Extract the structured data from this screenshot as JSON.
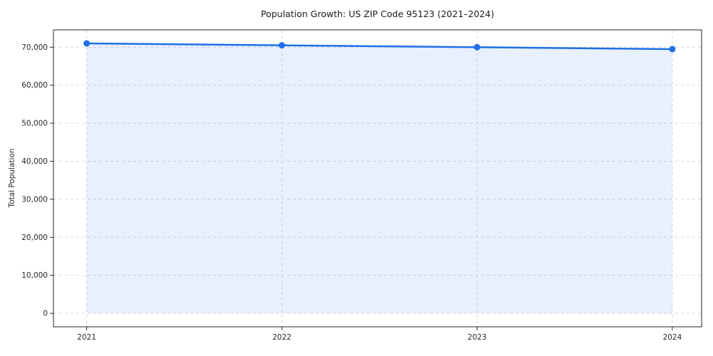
{
  "chart_data": {
    "type": "area",
    "title": "Population Growth: US ZIP Code 95123 (2021–2024)",
    "xlabel": "",
    "ylabel": "Total Population",
    "categories": [
      "2021",
      "2022",
      "2023",
      "2024"
    ],
    "x": [
      2021,
      2022,
      2023,
      2024
    ],
    "series": [
      {
        "name": "Total Population",
        "values": [
          71000,
          70500,
          70000,
          69500
        ]
      }
    ],
    "fill_to_baseline": 0,
    "xlim": [
      2020.83,
      2024.15
    ],
    "ylim": [
      -3550,
      74550
    ],
    "yticks": [
      0,
      10000,
      20000,
      30000,
      40000,
      50000,
      60000,
      70000
    ],
    "ytick_labels": [
      "0",
      "10,000",
      "20,000",
      "30,000",
      "40,000",
      "50,000",
      "60,000",
      "70,000"
    ],
    "grid": {
      "visible": true,
      "style": "dashed",
      "axes": "both"
    },
    "legend": "none",
    "colors": {
      "line": "#1f6fe8",
      "marker": "#1f6fe8",
      "fill": "rgba(31,111,232,0.10)",
      "grid": "#d7d7d7",
      "spine": "#262626",
      "tick_text": "#262626",
      "title_text": "#1a1a1a"
    }
  }
}
